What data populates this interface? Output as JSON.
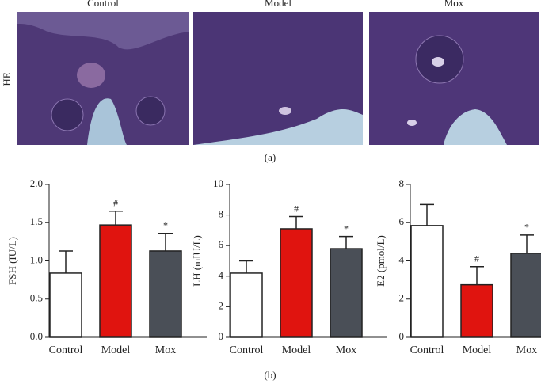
{
  "panel_a": {
    "label": "(a)",
    "row_label": "HE",
    "columns": [
      "Control",
      "Model",
      "Mox"
    ]
  },
  "panel_b_label": "(b)",
  "chart_data": [
    {
      "type": "bar",
      "y_label": "FSH (IU/L)",
      "categories": [
        "Control",
        "Model",
        "Mox"
      ],
      "values": [
        0.84,
        1.47,
        1.13
      ],
      "errors": [
        0.29,
        0.18,
        0.23
      ],
      "annotations": [
        null,
        "#",
        "*"
      ],
      "colors": [
        "#ffffff",
        "#e0140f",
        "#4a4f57"
      ],
      "ylim": [
        0,
        2
      ],
      "yticks": [
        {
          "value": 0,
          "label": "0.0"
        },
        0.5,
        {
          "value": 1,
          "label": "1.0"
        },
        1.5,
        {
          "value": 2,
          "label": "2.0"
        }
      ],
      "grid": false
    },
    {
      "type": "bar",
      "y_label": "LH (mIU/L)",
      "categories": [
        "Control",
        "Model",
        "Mox"
      ],
      "values": [
        4.2,
        7.1,
        5.8
      ],
      "errors": [
        0.8,
        0.8,
        0.8
      ],
      "annotations": [
        null,
        "#",
        "*"
      ],
      "colors": [
        "#ffffff",
        "#e0140f",
        "#4a4f57"
      ],
      "ylim": [
        0,
        10
      ],
      "yticks": [
        0,
        2,
        4,
        6,
        8,
        10
      ],
      "grid": false
    },
    {
      "type": "bar",
      "y_label": "E2 (pmol/L)",
      "categories": [
        "Control",
        "Model",
        "Mox"
      ],
      "values": [
        5.85,
        2.75,
        4.4
      ],
      "errors": [
        1.1,
        0.95,
        0.95
      ],
      "annotations": [
        null,
        "#",
        "*"
      ],
      "colors": [
        "#ffffff",
        "#e0140f",
        "#4a4f57"
      ],
      "ylim": [
        0,
        8
      ],
      "yticks": [
        0,
        2,
        4,
        6,
        8
      ],
      "grid": false
    }
  ]
}
